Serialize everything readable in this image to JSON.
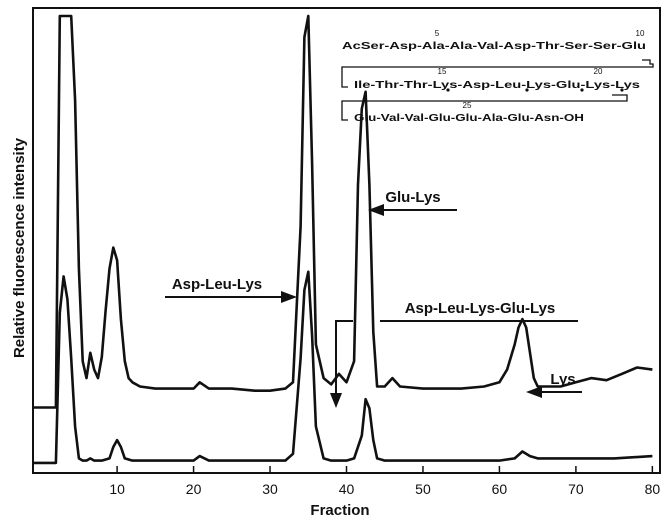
{
  "chart_data": {
    "type": "line",
    "xlabel": "Fraction",
    "ylabel": "Relative fluorescence intensity",
    "xlim": [
      -1,
      81
    ],
    "ylim": [
      0,
      100
    ],
    "x_ticks": [
      10,
      20,
      30,
      40,
      50,
      60,
      70,
      80
    ],
    "x_tick_labels": [
      "10",
      "20",
      "30",
      "40",
      "50",
      "60",
      "70",
      "80"
    ],
    "grid": false,
    "series": [
      {
        "x": [
          2,
          2.5,
          3,
          3.5,
          4,
          4.5,
          5,
          5.5,
          6,
          6.5,
          7,
          7.5,
          8,
          8.5,
          9,
          9.5,
          10,
          10.5,
          11,
          11.5,
          12,
          13,
          15,
          18,
          20,
          20.8,
          22,
          25,
          28,
          30,
          32,
          33,
          34,
          34.5,
          35,
          35.5,
          36,
          37,
          38,
          39,
          40,
          41,
          41.5,
          42,
          42.5,
          43,
          43.5,
          44,
          45,
          46,
          47,
          50,
          55,
          58,
          60,
          61,
          62,
          62.5,
          63,
          63.5,
          64,
          64.5,
          65,
          66,
          68,
          70,
          72,
          74,
          76,
          78,
          80
        ],
        "values": [
          7,
          100,
          100,
          100,
          100,
          80,
          40,
          18,
          14,
          20,
          16,
          14,
          19,
          30,
          40,
          45,
          42,
          28,
          18,
          14,
          13,
          12,
          11.5,
          11.5,
          11.5,
          13,
          11.5,
          11.5,
          11,
          11,
          11.5,
          13,
          50,
          95,
          100,
          65,
          22,
          14,
          12.5,
          15,
          13,
          18,
          60,
          78,
          82,
          60,
          25,
          12,
          12,
          14,
          12,
          11.5,
          11.5,
          12,
          13,
          16,
          22,
          26,
          28,
          26,
          20,
          14,
          12,
          12,
          12,
          13,
          14,
          13.5,
          15,
          16.5,
          16
        ]
      },
      {
        "x": [
          2,
          2.5,
          3,
          3.5,
          4,
          4.5,
          5,
          5.5,
          6,
          6.5,
          7,
          8,
          9,
          9.5,
          10,
          10.5,
          11,
          12,
          15,
          18,
          20,
          20.8,
          22,
          25,
          30,
          32,
          33,
          34,
          34.5,
          35,
          35.5,
          36,
          37,
          38,
          40,
          41,
          42,
          42.5,
          43,
          43.5,
          44,
          45,
          50,
          55,
          60,
          62,
          63,
          64,
          65,
          70,
          75,
          80
        ],
        "values": [
          2,
          35,
          43,
          38,
          25,
          10,
          3,
          2.5,
          2.5,
          3,
          2.5,
          2.5,
          3,
          5.5,
          7,
          5.5,
          3,
          2.5,
          2.5,
          2.5,
          2.5,
          3.5,
          2.5,
          2.5,
          2.5,
          2.5,
          4,
          25,
          40,
          44,
          30,
          10,
          3,
          2.5,
          2.5,
          3,
          8,
          16,
          14,
          7,
          3,
          2.5,
          2.5,
          2.5,
          2.5,
          3,
          4.5,
          3.5,
          3,
          3,
          3,
          3.5
        ]
      }
    ],
    "annotations": [
      {
        "text": "Asp-Leu-Lys",
        "x": 35
      },
      {
        "text": "Glu-Lys",
        "x": 42.5
      },
      {
        "text": "Asp-Leu-Lys-Glu-Lys",
        "x": 39
      },
      {
        "text": "Lys",
        "x": 63
      }
    ],
    "sequence": {
      "row1": [
        "AcSer",
        "Asp",
        "Ala",
        "Ala",
        "Val",
        "Asp",
        "Thr",
        "Ser",
        "Ser",
        "Glu"
      ],
      "row2": [
        "Ile",
        "Thr",
        "Thr",
        "Lys",
        "Asp",
        "Leu",
        "Lys",
        "Glu",
        "Lys",
        "Lys"
      ],
      "row3": [
        "Glu",
        "Val",
        "Val",
        "Glu",
        "Glu",
        "Ala",
        "Glu",
        "Asn",
        "OH"
      ],
      "numbers": [
        "5",
        "10",
        "15",
        "20",
        "25"
      ]
    }
  }
}
